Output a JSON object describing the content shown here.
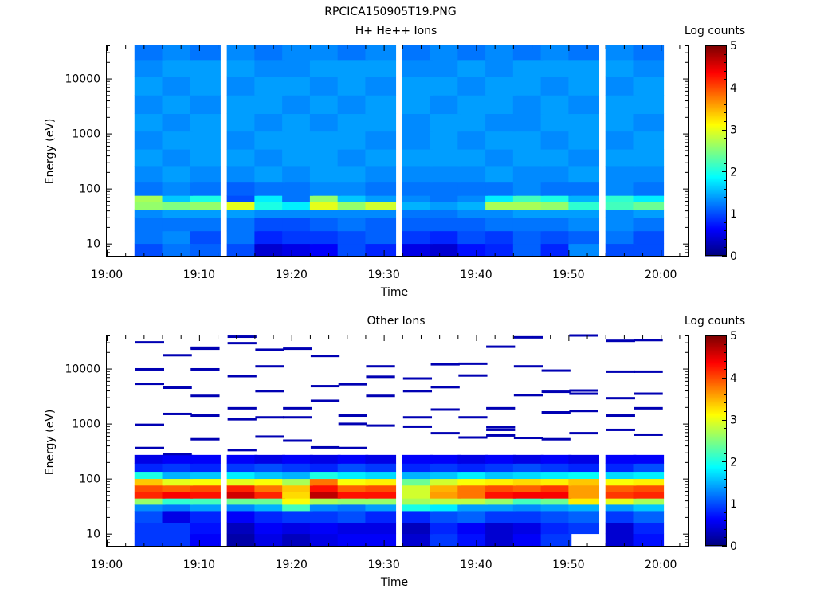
{
  "figure": {
    "title": "RPCICA150905T19.PNG"
  },
  "chart_data": [
    {
      "type": "heatmap",
      "title": "H+ He++ Ions",
      "xlabel": "Time",
      "ylabel": "Energy (eV)",
      "colorbar_label": "Log counts",
      "colorbar_ticks": [
        "0",
        "1",
        "2",
        "3",
        "4",
        "5"
      ],
      "clim": [
        0,
        5
      ],
      "y_scale": "log",
      "ylim": [
        6,
        40000
      ],
      "y_ticks": [
        "10",
        "100",
        "1000",
        "10000"
      ],
      "xlim": [
        "19:00",
        "20:03"
      ],
      "x_ticks": [
        "19:00",
        "19:10",
        "19:20",
        "19:30",
        "19:40",
        "19:50",
        "20:00"
      ],
      "time_bins": [
        "19:03",
        "19:06",
        "19:09",
        "19:13",
        "19:16",
        "19:19",
        "19:22",
        "19:25",
        "19:28",
        "19:32",
        "19:35",
        "19:38",
        "19:41",
        "19:44",
        "19:47",
        "19:50",
        "19:54",
        "19:57"
      ],
      "energy_bands": [
        {
          "range": [
            6,
            10
          ],
          "values": [
            1.0,
            1.2,
            1.1,
            1.0,
            0.4,
            0.5,
            0.6,
            1.0,
            0.8,
            0.5,
            0.4,
            0.7,
            0.8,
            1.1,
            0.8,
            1.3,
            1.0,
            1.0
          ]
        },
        {
          "range": [
            10,
            17
          ],
          "values": [
            1.2,
            1.3,
            1.0,
            1.2,
            0.8,
            0.9,
            0.9,
            1.0,
            1.1,
            0.9,
            0.8,
            1.0,
            0.9,
            1.1,
            1.0,
            1.1,
            1.2,
            1.0
          ]
        },
        {
          "range": [
            17,
            30
          ],
          "values": [
            1.2,
            1.2,
            1.2,
            1.2,
            1.0,
            1.0,
            1.1,
            1.2,
            1.1,
            1.1,
            1.1,
            1.1,
            1.2,
            1.2,
            1.2,
            1.3,
            1.3,
            1.2
          ]
        },
        {
          "range": [
            30,
            42
          ],
          "values": [
            1.3,
            1.4,
            1.4,
            1.4,
            1.3,
            1.3,
            1.3,
            1.3,
            1.3,
            1.2,
            1.2,
            1.3,
            1.3,
            1.4,
            1.4,
            1.4,
            1.3,
            1.4
          ]
        },
        {
          "range": [
            42,
            58
          ],
          "values": [
            2.6,
            2.5,
            2.6,
            3.0,
            2.0,
            1.8,
            3.0,
            2.6,
            2.9,
            1.5,
            1.4,
            1.5,
            2.7,
            2.7,
            2.6,
            2.1,
            2.2,
            2.4
          ]
        },
        {
          "range": [
            58,
            75
          ],
          "values": [
            2.7,
            1.6,
            2.0,
            1.0,
            1.8,
            1.2,
            2.6,
            1.6,
            1.4,
            1.3,
            1.2,
            1.3,
            1.8,
            2.2,
            2.0,
            1.5,
            2.1,
            1.8
          ]
        },
        {
          "range": [
            75,
            130
          ],
          "values": [
            1.2,
            1.3,
            1.2,
            1.1,
            1.2,
            1.2,
            1.3,
            1.3,
            1.2,
            1.2,
            1.2,
            1.2,
            1.2,
            1.3,
            1.2,
            1.2,
            1.3,
            1.2
          ]
        },
        {
          "range": [
            130,
            260
          ],
          "values": [
            1.3,
            1.4,
            1.3,
            1.3,
            1.4,
            1.3,
            1.4,
            1.4,
            1.3,
            1.3,
            1.3,
            1.3,
            1.4,
            1.3,
            1.3,
            1.4,
            1.3,
            1.3
          ]
        },
        {
          "range": [
            260,
            520
          ],
          "values": [
            1.4,
            1.3,
            1.4,
            1.4,
            1.3,
            1.4,
            1.4,
            1.3,
            1.4,
            1.4,
            1.4,
            1.4,
            1.3,
            1.4,
            1.4,
            1.3,
            1.4,
            1.4
          ]
        },
        {
          "range": [
            520,
            1100
          ],
          "values": [
            1.3,
            1.4,
            1.4,
            1.3,
            1.4,
            1.4,
            1.4,
            1.4,
            1.3,
            1.3,
            1.4,
            1.3,
            1.4,
            1.4,
            1.3,
            1.4,
            1.3,
            1.4
          ]
        },
        {
          "range": [
            1100,
            2300
          ],
          "values": [
            1.4,
            1.3,
            1.4,
            1.4,
            1.3,
            1.4,
            1.3,
            1.4,
            1.4,
            1.3,
            1.4,
            1.4,
            1.3,
            1.3,
            1.4,
            1.4,
            1.4,
            1.3
          ]
        },
        {
          "range": [
            2300,
            5000
          ],
          "values": [
            1.3,
            1.4,
            1.3,
            1.4,
            1.4,
            1.3,
            1.4,
            1.3,
            1.4,
            1.4,
            1.3,
            1.4,
            1.4,
            1.3,
            1.4,
            1.3,
            1.4,
            1.4
          ]
        },
        {
          "range": [
            5000,
            11000
          ],
          "values": [
            1.4,
            1.3,
            1.4,
            1.3,
            1.4,
            1.4,
            1.3,
            1.4,
            1.3,
            1.4,
            1.4,
            1.3,
            1.4,
            1.4,
            1.3,
            1.4,
            1.3,
            1.4
          ]
        },
        {
          "range": [
            11000,
            22000
          ],
          "values": [
            1.3,
            1.4,
            1.4,
            1.4,
            1.3,
            1.3,
            1.4,
            1.4,
            1.4,
            1.3,
            1.3,
            1.4,
            1.3,
            1.4,
            1.4,
            1.4,
            1.4,
            1.3
          ]
        },
        {
          "range": [
            22000,
            40000
          ],
          "values": [
            1.2,
            1.3,
            1.2,
            1.3,
            1.2,
            1.3,
            1.3,
            1.2,
            1.3,
            1.2,
            1.3,
            1.2,
            1.3,
            1.2,
            1.3,
            1.2,
            1.3,
            1.2
          ]
        }
      ]
    },
    {
      "type": "heatmap",
      "title": "Other Ions",
      "xlabel": "Time",
      "ylabel": "Energy (eV)",
      "colorbar_label": "Log counts",
      "colorbar_ticks": [
        "0",
        "1",
        "2",
        "3",
        "4",
        "5"
      ],
      "clim": [
        0,
        5
      ],
      "y_scale": "log",
      "ylim": [
        6,
        40000
      ],
      "y_ticks": [
        "10",
        "100",
        "1000",
        "10000"
      ],
      "xlim": [
        "19:00",
        "20:03"
      ],
      "x_ticks": [
        "19:00",
        "19:10",
        "19:20",
        "19:30",
        "19:40",
        "19:50",
        "20:00"
      ],
      "time_bins": [
        "19:03",
        "19:06",
        "19:09",
        "19:13",
        "19:16",
        "19:19",
        "19:22",
        "19:25",
        "19:28",
        "19:32",
        "19:35",
        "19:38",
        "19:41",
        "19:44",
        "19:47",
        "19:50",
        "19:54",
        "19:57"
      ],
      "energy_bands": [
        {
          "range": [
            6,
            10
          ],
          "values": [
            0.9,
            0.9,
            0.6,
            0.2,
            0.5,
            0.3,
            0.5,
            0.6,
            0.6,
            0.4,
            0.9,
            0.7,
            0.4,
            0.6,
            0.9,
            null,
            0.4,
            0.7
          ]
        },
        {
          "range": [
            10,
            16
          ],
          "values": [
            0.9,
            0.9,
            0.7,
            0.3,
            0.6,
            0.5,
            0.6,
            0.5,
            0.5,
            0.3,
            0.8,
            0.6,
            0.4,
            0.5,
            0.8,
            0.9,
            0.4,
            0.8
          ]
        },
        {
          "range": [
            16,
            26
          ],
          "values": [
            1.0,
            0.5,
            0.8,
            0.6,
            0.8,
            0.9,
            0.9,
            1.0,
            0.8,
            0.8,
            1.0,
            1.1,
            0.9,
            0.9,
            1.0,
            1.1,
            0.9,
            1.1
          ]
        },
        {
          "range": [
            26,
            34
          ],
          "values": [
            1.3,
            1.2,
            1.4,
            1.3,
            1.5,
            2.2,
            1.3,
            1.2,
            1.4,
            2.0,
            1.8,
            1.4,
            1.4,
            1.3,
            1.4,
            1.5,
            1.4,
            1.6
          ]
        },
        {
          "range": [
            34,
            44
          ],
          "values": [
            2.6,
            2.1,
            2.2,
            2.4,
            2.4,
            3.1,
            2.7,
            2.6,
            2.6,
            2.7,
            2.8,
            2.8,
            2.6,
            2.2,
            2.4,
            3.2,
            3.0,
            2.7
          ]
        },
        {
          "range": [
            44,
            58
          ],
          "values": [
            4.2,
            4.4,
            4.3,
            4.6,
            4.2,
            3.3,
            4.7,
            4.3,
            4.3,
            2.9,
            3.6,
            3.8,
            4.3,
            4.4,
            4.4,
            3.6,
            4.1,
            4.2
          ]
        },
        {
          "range": [
            58,
            76
          ],
          "values": [
            4.0,
            3.9,
            4.0,
            4.2,
            3.8,
            3.4,
            4.3,
            3.9,
            4.0,
            2.9,
            3.5,
            3.8,
            4.0,
            3.9,
            4.1,
            3.6,
            3.9,
            4.0
          ]
        },
        {
          "range": [
            76,
            100
          ],
          "values": [
            3.4,
            3.0,
            3.1,
            3.0,
            3.1,
            2.7,
            3.8,
            3.1,
            3.2,
            2.4,
            2.9,
            3.1,
            3.2,
            3.3,
            3.2,
            3.4,
            3.1,
            3.2
          ]
        },
        {
          "range": [
            100,
            135
          ],
          "values": [
            2.0,
            1.5,
            1.6,
            1.8,
            1.6,
            1.5,
            2.0,
            1.8,
            1.7,
            1.5,
            1.6,
            1.8,
            1.6,
            1.7,
            1.8,
            1.9,
            1.7,
            1.8
          ]
        },
        {
          "range": [
            135,
            190
          ],
          "values": [
            0.8,
            0.9,
            0.8,
            0.9,
            1.0,
            0.9,
            0.8,
            1.0,
            0.9,
            0.8,
            0.9,
            0.8,
            0.9,
            1.0,
            0.9,
            0.8,
            0.8,
            1.0
          ]
        },
        {
          "range": [
            190,
            270
          ],
          "values": [
            0.5,
            0.6,
            0.6,
            0.6,
            0.5,
            0.6,
            0.5,
            0.6,
            0.5,
            0.6,
            0.6,
            0.5,
            0.6,
            0.5,
            0.6,
            0.5,
            0.6,
            0.6
          ]
        }
      ],
      "sparse_traces_eV": [
        [
          30000,
          950,
          360,
          5300,
          9700
        ],
        [
          17500,
          4500,
          1500,
          280
        ],
        [
          24000,
          9700,
          1400,
          520,
          23000,
          3200
        ],
        [
          38000,
          29000,
          7300,
          1900,
          1200,
          330
        ],
        [
          22000,
          11000,
          3900,
          1300,
          580
        ],
        [
          23000,
          1900,
          1300,
          490
        ],
        [
          17000,
          4800,
          2600,
          370
        ],
        [
          5200,
          1400,
          360,
          990
        ],
        [
          11000,
          7100,
          3200,
          920
        ],
        [
          6600,
          3900,
          1300,
          880
        ],
        [
          12000,
          4600,
          1800,
          670
        ],
        [
          12300,
          7500,
          1300,
          560
        ],
        [
          25000,
          1900,
          860,
          610,
          770
        ],
        [
          37000,
          11000,
          3300,
          550
        ],
        [
          9200,
          3800,
          1600,
          520
        ],
        [
          40000,
          4000,
          1700,
          670,
          3500
        ],
        [
          32000,
          8800,
          1400,
          770,
          2900
        ],
        [
          33000,
          8800,
          1900,
          630,
          3500
        ]
      ]
    }
  ]
}
